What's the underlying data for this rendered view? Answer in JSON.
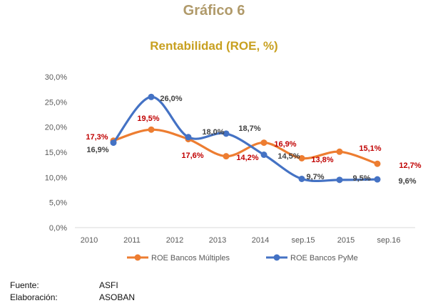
{
  "header": {
    "figure_number": "Gráfico 6",
    "title": "Rentabilidad (ROE, %)"
  },
  "chart_data": {
    "type": "line",
    "title": "Rentabilidad (ROE, %)",
    "categories": [
      "2010",
      "2011",
      "2012",
      "2013",
      "2014",
      "sep.15",
      "2015",
      "sep.16"
    ],
    "ylim": [
      0,
      30
    ],
    "yticks": [
      "0,0%",
      "5,0%",
      "10,0%",
      "15,0%",
      "20,0%",
      "25,0%",
      "30,0%"
    ],
    "grid": false,
    "legend": "bottom",
    "smooth": true,
    "series": [
      {
        "name": "ROE Bancos Múltiples",
        "color": "#ed7d31",
        "label_color": "#c00000",
        "values": [
          17.3,
          19.5,
          17.6,
          14.2,
          16.9,
          13.8,
          15.1,
          12.7
        ],
        "labels": [
          "17,3%",
          "19,5%",
          "17,6%",
          "14,2%",
          "16,9%",
          "13,8%",
          "15,1%",
          "12,7%"
        ]
      },
      {
        "name": "ROE Bancos PyMe",
        "color": "#4472c4",
        "label_color": "#404040",
        "values": [
          16.9,
          26.0,
          18.0,
          18.7,
          14.5,
          9.7,
          9.5,
          9.6
        ],
        "labels": [
          "16,9%",
          "26,0%",
          "18,0%",
          "18,7%",
          "14,5%",
          "9,7%",
          "9,5%",
          "9,6%"
        ]
      }
    ]
  },
  "footer": {
    "source_label": "Fuente:",
    "source_value": "ASFI",
    "made_label": "Elaboración:",
    "made_value": "ASOBAN"
  }
}
